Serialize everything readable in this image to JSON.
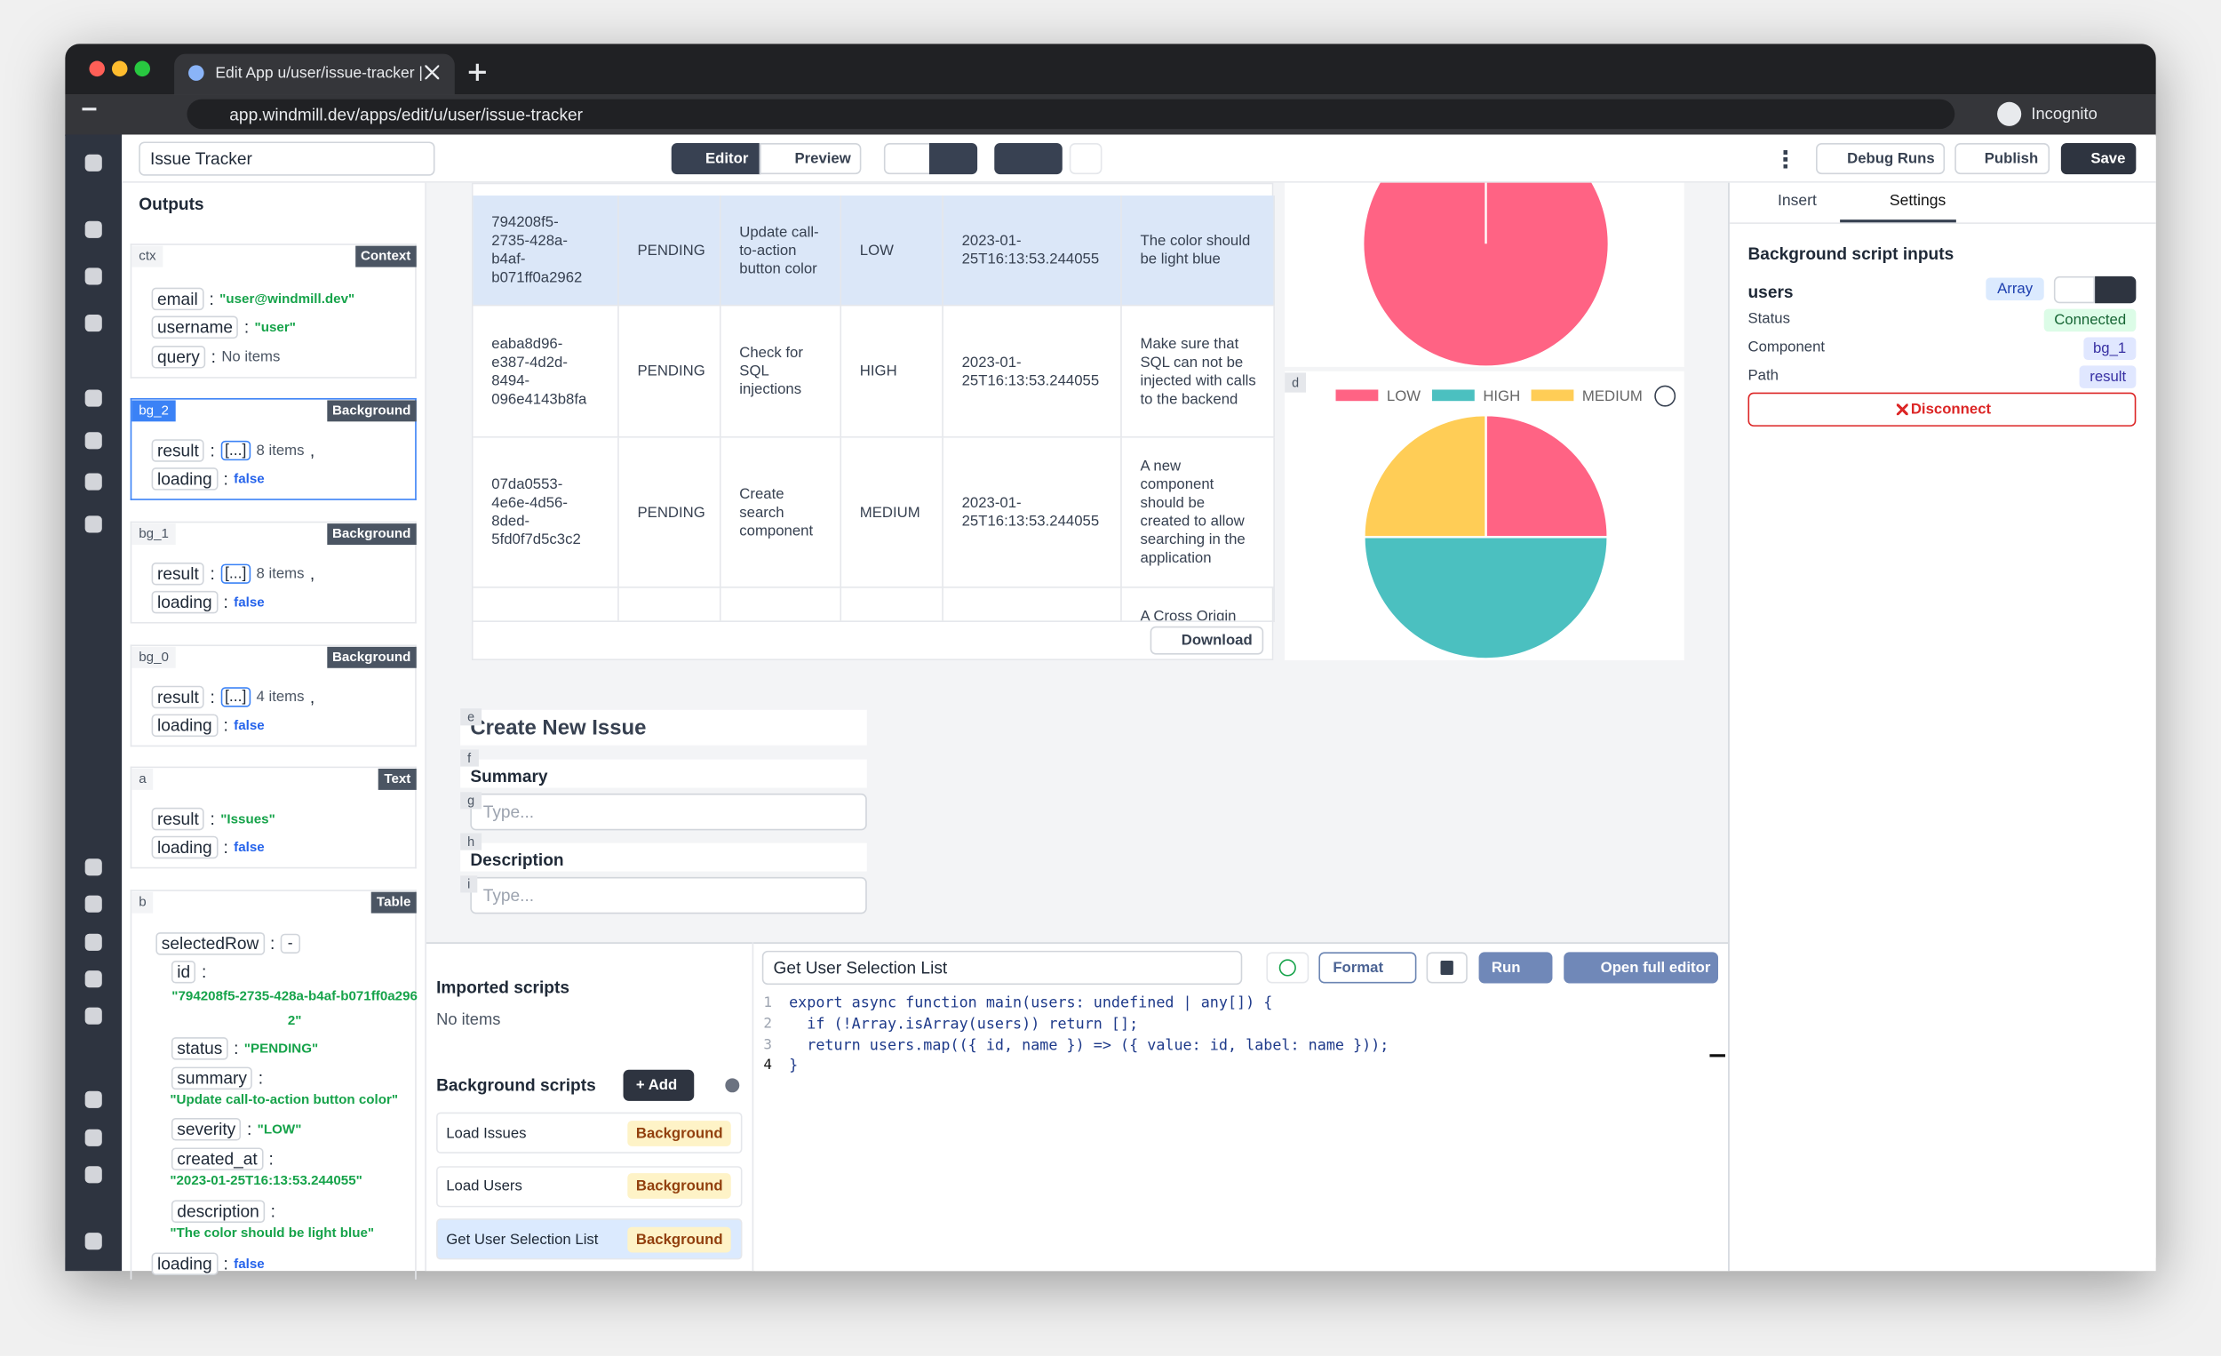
{
  "browser": {
    "tab_title": "Edit App u/user/issue-tracker |",
    "url": "app.windmill.dev/apps/edit/u/user/issue-tracker",
    "profile": "Incognito"
  },
  "toolbar": {
    "app_name": "Issue Tracker",
    "editor": "Editor",
    "preview": "Preview",
    "debug_runs": "Debug Runs",
    "publish": "Publish",
    "save": "Save"
  },
  "outputs": {
    "title": "Outputs",
    "separator": ":",
    "comma": ",",
    "panels": [
      {
        "id": "ctx",
        "kind": "Context",
        "fields": [
          {
            "key": "email",
            "value": "\"user@windmill.dev\""
          },
          {
            "key": "username",
            "value": "\"user\""
          },
          {
            "key": "query",
            "value": "No items"
          }
        ]
      },
      {
        "id": "bg_2",
        "kind": "Background",
        "fields": [
          {
            "key": "result",
            "badge": "[...]",
            "value": "8 items"
          },
          {
            "key": "loading",
            "value": "false"
          }
        ]
      },
      {
        "id": "bg_1",
        "kind": "Background",
        "fields": [
          {
            "key": "result",
            "badge": "[...]",
            "value": "8 items"
          },
          {
            "key": "loading",
            "value": "false"
          }
        ]
      },
      {
        "id": "bg_0",
        "kind": "Background",
        "fields": [
          {
            "key": "result",
            "badge": "[...]",
            "value": "4 items"
          },
          {
            "key": "loading",
            "value": "false"
          }
        ]
      },
      {
        "id": "a",
        "kind": "Text",
        "fields": [
          {
            "key": "result",
            "value": "\"Issues\""
          },
          {
            "key": "loading",
            "value": "false"
          }
        ]
      },
      {
        "id": "b",
        "kind": "Table",
        "fields": [
          {
            "key": "selectedRow",
            "value": "-"
          },
          {
            "key": "id",
            "value": "\"794208f5-2735-428a-b4af-b071ff0a2962\""
          },
          {
            "key": "status",
            "value": "\"PENDING\""
          },
          {
            "key": "summary",
            "value": "\"Update call-to-action button color\""
          },
          {
            "key": "severity",
            "value": "\"LOW\""
          },
          {
            "key": "created_at",
            "value": "\"2023-01-25T16:13:53.244055\""
          },
          {
            "key": "description",
            "value": "\"The color should be light blue\""
          },
          {
            "key": "loading",
            "value": "false"
          }
        ]
      }
    ]
  },
  "table": {
    "rows": [
      [
        "794208f5-2735-428a-b4af-b071ff0a2962",
        "PENDING",
        "Update call-to-action button color",
        "LOW",
        "2023-01-25T16:13:53.244055",
        "The color should be light blue"
      ],
      [
        "eaba8d96-e387-4d2d-8494-096e4143b8fa",
        "PENDING",
        "Check for SQL injections",
        "HIGH",
        "2023-01-25T16:13:53.244055",
        "Make sure that SQL can not be injected with calls to the backend"
      ],
      [
        "07da0553-4e6e-4d56-8ded-5fd0f7d5c3c2",
        "PENDING",
        "Create search component",
        "MEDIUM",
        "2023-01-25T16:13:53.244055",
        "A new component should be created to allow searching in the application"
      ]
    ],
    "partial_row_description": "A Cross Origin",
    "download": "Download"
  },
  "top_pie": {
    "values": [
      1
    ],
    "color": "#ff6384"
  },
  "pie": {
    "label": "d",
    "series": [
      {
        "name": "LOW",
        "color": "#ff6384",
        "value": 1
      },
      {
        "name": "HIGH",
        "color": "#4bc0c0",
        "value": 2
      },
      {
        "name": "MEDIUM",
        "color": "#ffcd56",
        "value": 1
      }
    ]
  },
  "form": {
    "tags": [
      "e",
      "f",
      "g",
      "h",
      "i"
    ],
    "heading": "Create New Issue",
    "summary_label": "Summary",
    "summary_placeholder": "Type...",
    "description_label": "Description",
    "description_placeholder": "Type..."
  },
  "scripts": {
    "imported_title": "Imported scripts",
    "imported_empty": "No items",
    "background_title": "Background scripts",
    "add": "+ Add",
    "items": [
      {
        "name": "Load Issues",
        "kind": "Background"
      },
      {
        "name": "Load Users",
        "kind": "Background"
      },
      {
        "name": "Get User Selection List",
        "kind": "Background"
      }
    ]
  },
  "editor": {
    "script_name": "Get User Selection List",
    "format": "Format",
    "run": "Run",
    "open_full_editor": "Open full editor",
    "line_numbers": [
      1,
      2,
      3,
      4
    ],
    "code": [
      "export async function main(users: undefined | any[]) {",
      "  if (!Array.isArray(users)) return [];",
      "  return users.map(({ id, name }) => ({ value: id, label: name }));",
      "}"
    ]
  },
  "settings": {
    "tabs": [
      "Insert",
      "Settings"
    ],
    "title": "Background script inputs",
    "input_name": "users",
    "input_type": "Array",
    "rows": [
      {
        "label": "Status",
        "value": "Connected"
      },
      {
        "label": "Component",
        "value": "bg_1"
      },
      {
        "label": "Path",
        "value": "result"
      }
    ],
    "disconnect": "Disconnect"
  }
}
